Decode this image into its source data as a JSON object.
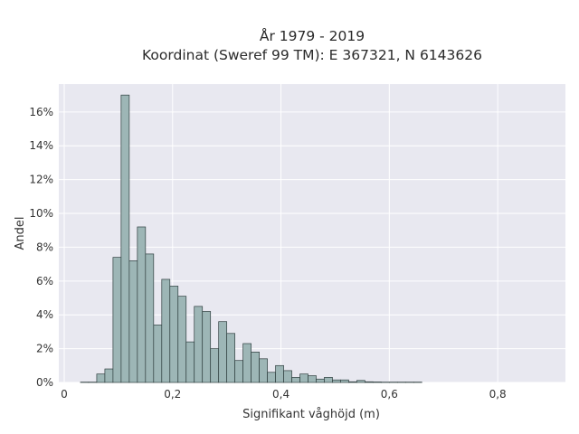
{
  "chart_data": {
    "type": "bar",
    "title": [
      "År 1979 - 2019",
      "Koordinat (Sweref 99 TM): E 367321, N 6143626"
    ],
    "xlabel": "Signifikant våghöjd (m)",
    "ylabel": "Andel",
    "xlim": [
      -0.01,
      0.925
    ],
    "ylim": [
      0,
      0.1765
    ],
    "xticks": [
      {
        "value": 0,
        "label": "0"
      },
      {
        "value": 0.2,
        "label": "0,2"
      },
      {
        "value": 0.4,
        "label": "0,4"
      },
      {
        "value": 0.6,
        "label": "0,6"
      },
      {
        "value": 0.8,
        "label": "0,8"
      }
    ],
    "yticks": [
      {
        "value": 0,
        "label": "0%"
      },
      {
        "value": 0.02,
        "label": "2%"
      },
      {
        "value": 0.04,
        "label": "4%"
      },
      {
        "value": 0.06,
        "label": "6%"
      },
      {
        "value": 0.08,
        "label": "8%"
      },
      {
        "value": 0.1,
        "label": "10%"
      },
      {
        "value": 0.12,
        "label": "12%"
      },
      {
        "value": 0.14,
        "label": "14%"
      },
      {
        "value": 0.16,
        "label": "16%"
      }
    ],
    "bin_width": 0.015,
    "bin_start": 0.03,
    "values": [
      0.0002,
      0.0002,
      0.005,
      0.008,
      0.074,
      0.17,
      0.072,
      0.092,
      0.076,
      0.034,
      0.061,
      0.057,
      0.051,
      0.024,
      0.045,
      0.042,
      0.02,
      0.036,
      0.029,
      0.013,
      0.023,
      0.018,
      0.014,
      0.006,
      0.01,
      0.007,
      0.003,
      0.005,
      0.004,
      0.002,
      0.003,
      0.0015,
      0.0015,
      0.0004,
      0.0012,
      0.0004,
      0.0003,
      0.0002,
      0.0002,
      0.0002,
      0.0002,
      0.0002
    ],
    "grid": true,
    "legend": false,
    "colors": {
      "background": "#e8e8f0",
      "bar_fill": "#9db6b6",
      "bar_edge": "#2f3f3f",
      "grid": "#ffffff"
    }
  }
}
